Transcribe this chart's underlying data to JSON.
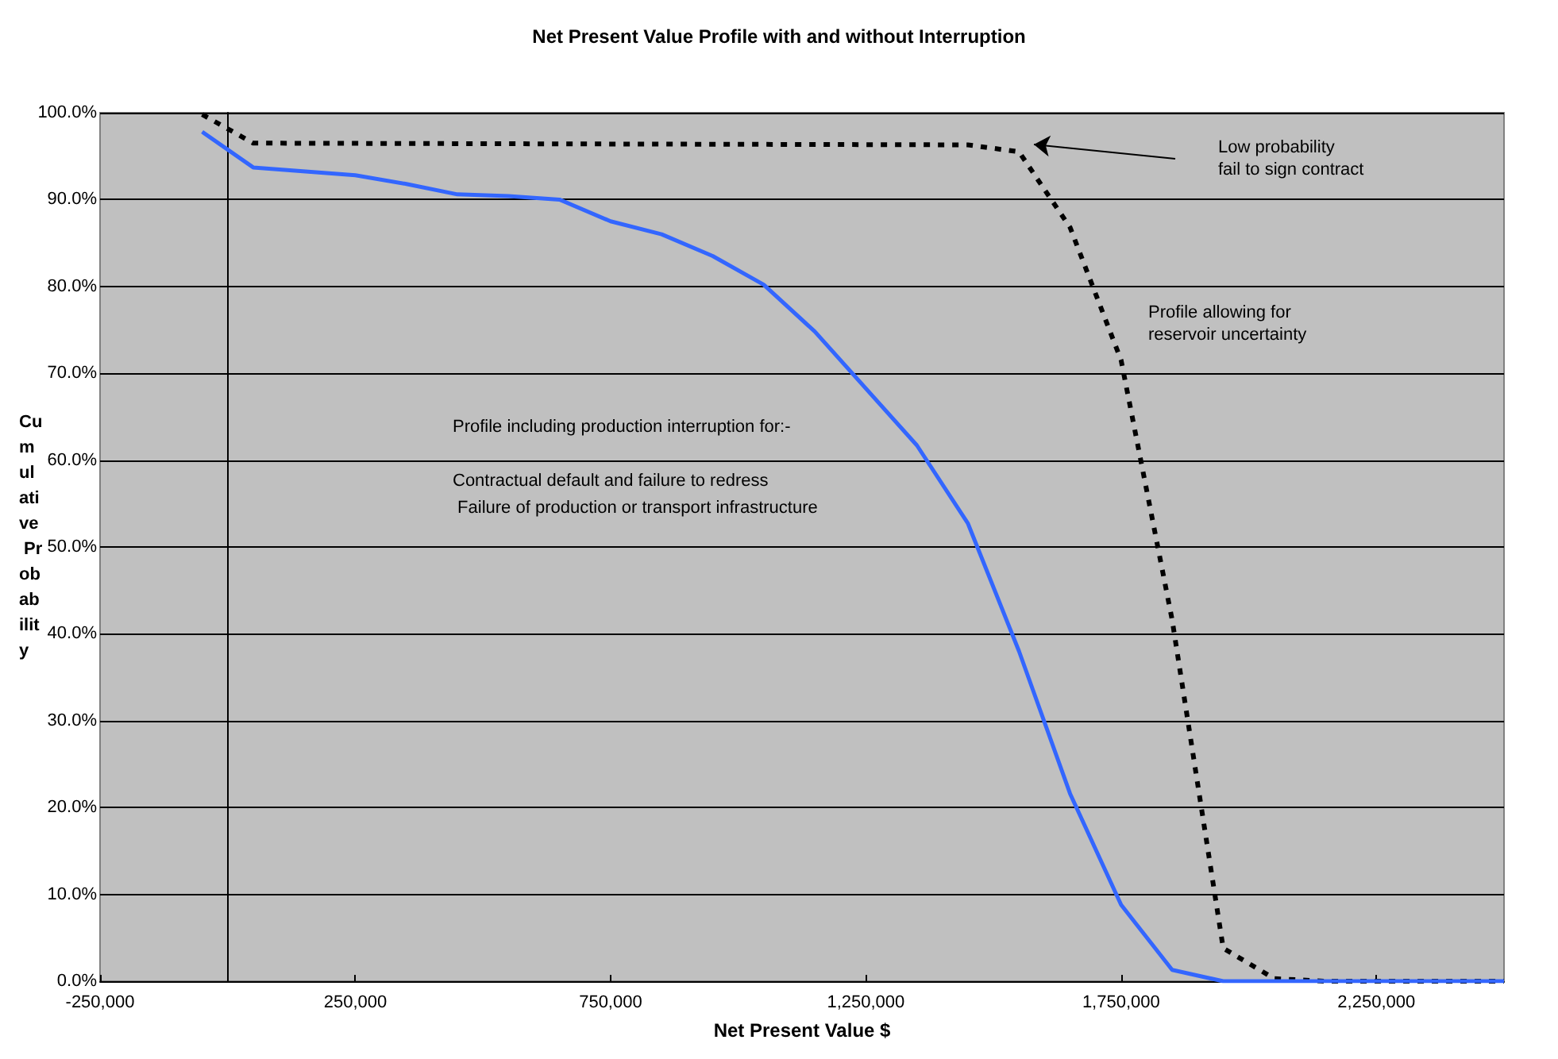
{
  "chart_data": {
    "type": "line",
    "title": "Net Present Value Profile with and without Interruption",
    "xlabel": "Net Present Value $",
    "ylabel": "Cumulative Probability",
    "xlim": [
      -250000,
      2500000
    ],
    "xticks": [
      {
        "value": -250000,
        "label": "-250,000"
      },
      {
        "value": 250000,
        "label": "250,000"
      },
      {
        "value": 750000,
        "label": "750,000"
      },
      {
        "value": 1250000,
        "label": "1,250,000"
      },
      {
        "value": 1750000,
        "label": "1,750,000"
      },
      {
        "value": 2250000,
        "label": "2,250,000"
      }
    ],
    "ylim": [
      0,
      100
    ],
    "yticks": [
      {
        "value": 0,
        "label": "0.0%"
      },
      {
        "value": 10,
        "label": "10.0%"
      },
      {
        "value": 20,
        "label": "20.0%"
      },
      {
        "value": 30,
        "label": "30.0%"
      },
      {
        "value": 40,
        "label": "40.0%"
      },
      {
        "value": 50,
        "label": "50.0%"
      },
      {
        "value": 60,
        "label": "60.0%"
      },
      {
        "value": 70,
        "label": "70.0%"
      },
      {
        "value": 80,
        "label": "80.0%"
      },
      {
        "value": 90,
        "label": "90.0%"
      },
      {
        "value": 100,
        "label": "100.0%"
      }
    ],
    "grid": "y",
    "marker": "none",
    "series": [
      {
        "color": "#000000",
        "line_style": "dashed",
        "x": [
          -50000,
          50000,
          1450000,
          1550000,
          1650000,
          1750000,
          1850000,
          1950000,
          2050000,
          2150000,
          2500000
        ],
        "values": [
          99.8,
          96.5,
          96.3,
          95.5,
          86.8,
          71.5,
          41.6,
          3.8,
          0.3,
          0,
          0
        ]
      },
      {
        "color": "#3366ff",
        "line_style": "solid",
        "x": [
          -50000,
          50000,
          250000,
          350000,
          450000,
          550000,
          650000,
          750000,
          850000,
          950000,
          1050000,
          1150000,
          1350000,
          1450000,
          1550000,
          1650000,
          1750000,
          1850000,
          1950000,
          2500000
        ],
        "values": [
          97.8,
          93.7,
          92.8,
          91.8,
          90.6,
          90.4,
          90.0,
          87.5,
          86.0,
          83.5,
          80.2,
          74.8,
          61.7,
          52.7,
          38,
          21.6,
          8.8,
          1.3,
          0,
          0
        ]
      }
    ],
    "annotations": [
      "Low probability\nfail to sign contract",
      "Profile allowing for\nreservoir uncertainty",
      "Profile including production interruption for:-",
      "Contractual default and failure to redress",
      " Failure of production or transport infrastructure"
    ]
  }
}
